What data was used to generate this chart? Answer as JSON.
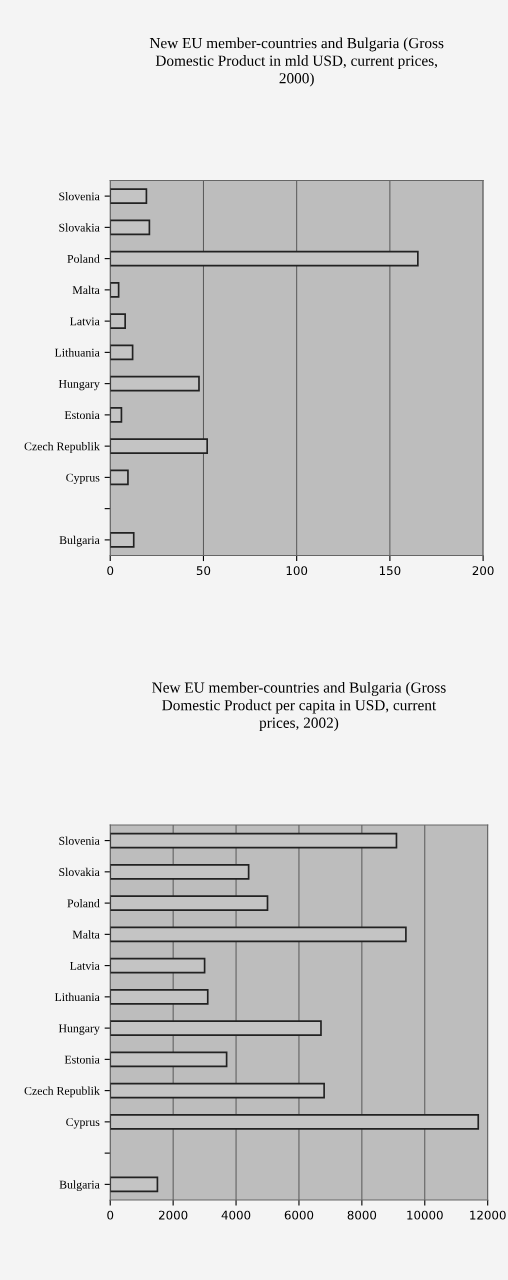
{
  "chart_data": [
    {
      "type": "bar",
      "orientation": "horizontal",
      "title": "New EU member-countries and Bulgaria (Gross\nDomestic Product in mld USD, current prices,\n2000)",
      "categories": [
        "Slovenia",
        "Slovakia",
        "Poland",
        "Malta",
        "Latvia",
        "Lithuania",
        "Hungary",
        "Estonia",
        "Czech Republik",
        "Cyprus",
        null,
        "Bulgaria"
      ],
      "values": [
        19.4,
        21,
        165,
        4.5,
        8,
        12,
        47.6,
        6,
        52,
        9.5,
        null,
        12.6
      ],
      "color": "#c4c4c4",
      "xlim": [
        0,
        200
      ],
      "xticks": [
        0,
        50,
        100,
        150,
        200
      ],
      "grid": "x"
    },
    {
      "type": "bar",
      "orientation": "horizontal",
      "title": "New EU member-countries and Bulgaria (Gross\nDomestic Product per capita in USD, current\nprices, 2002)",
      "categories": [
        "Slovenia",
        "Slovakia",
        "Poland",
        "Malta",
        "Latvia",
        "Lithuania",
        "Hungary",
        "Estonia",
        "Czech Republik",
        "Cyprus",
        null,
        "Bulgaria"
      ],
      "values": [
        9100,
        4400,
        5000,
        9400,
        3000,
        3100,
        6700,
        3700,
        6800,
        11700,
        null,
        1500
      ],
      "color": "#c4c4c4",
      "xlim": [
        0,
        12000
      ],
      "xticks": [
        0,
        2000,
        4000,
        6000,
        8000,
        10000,
        12000
      ],
      "grid": "x"
    }
  ]
}
